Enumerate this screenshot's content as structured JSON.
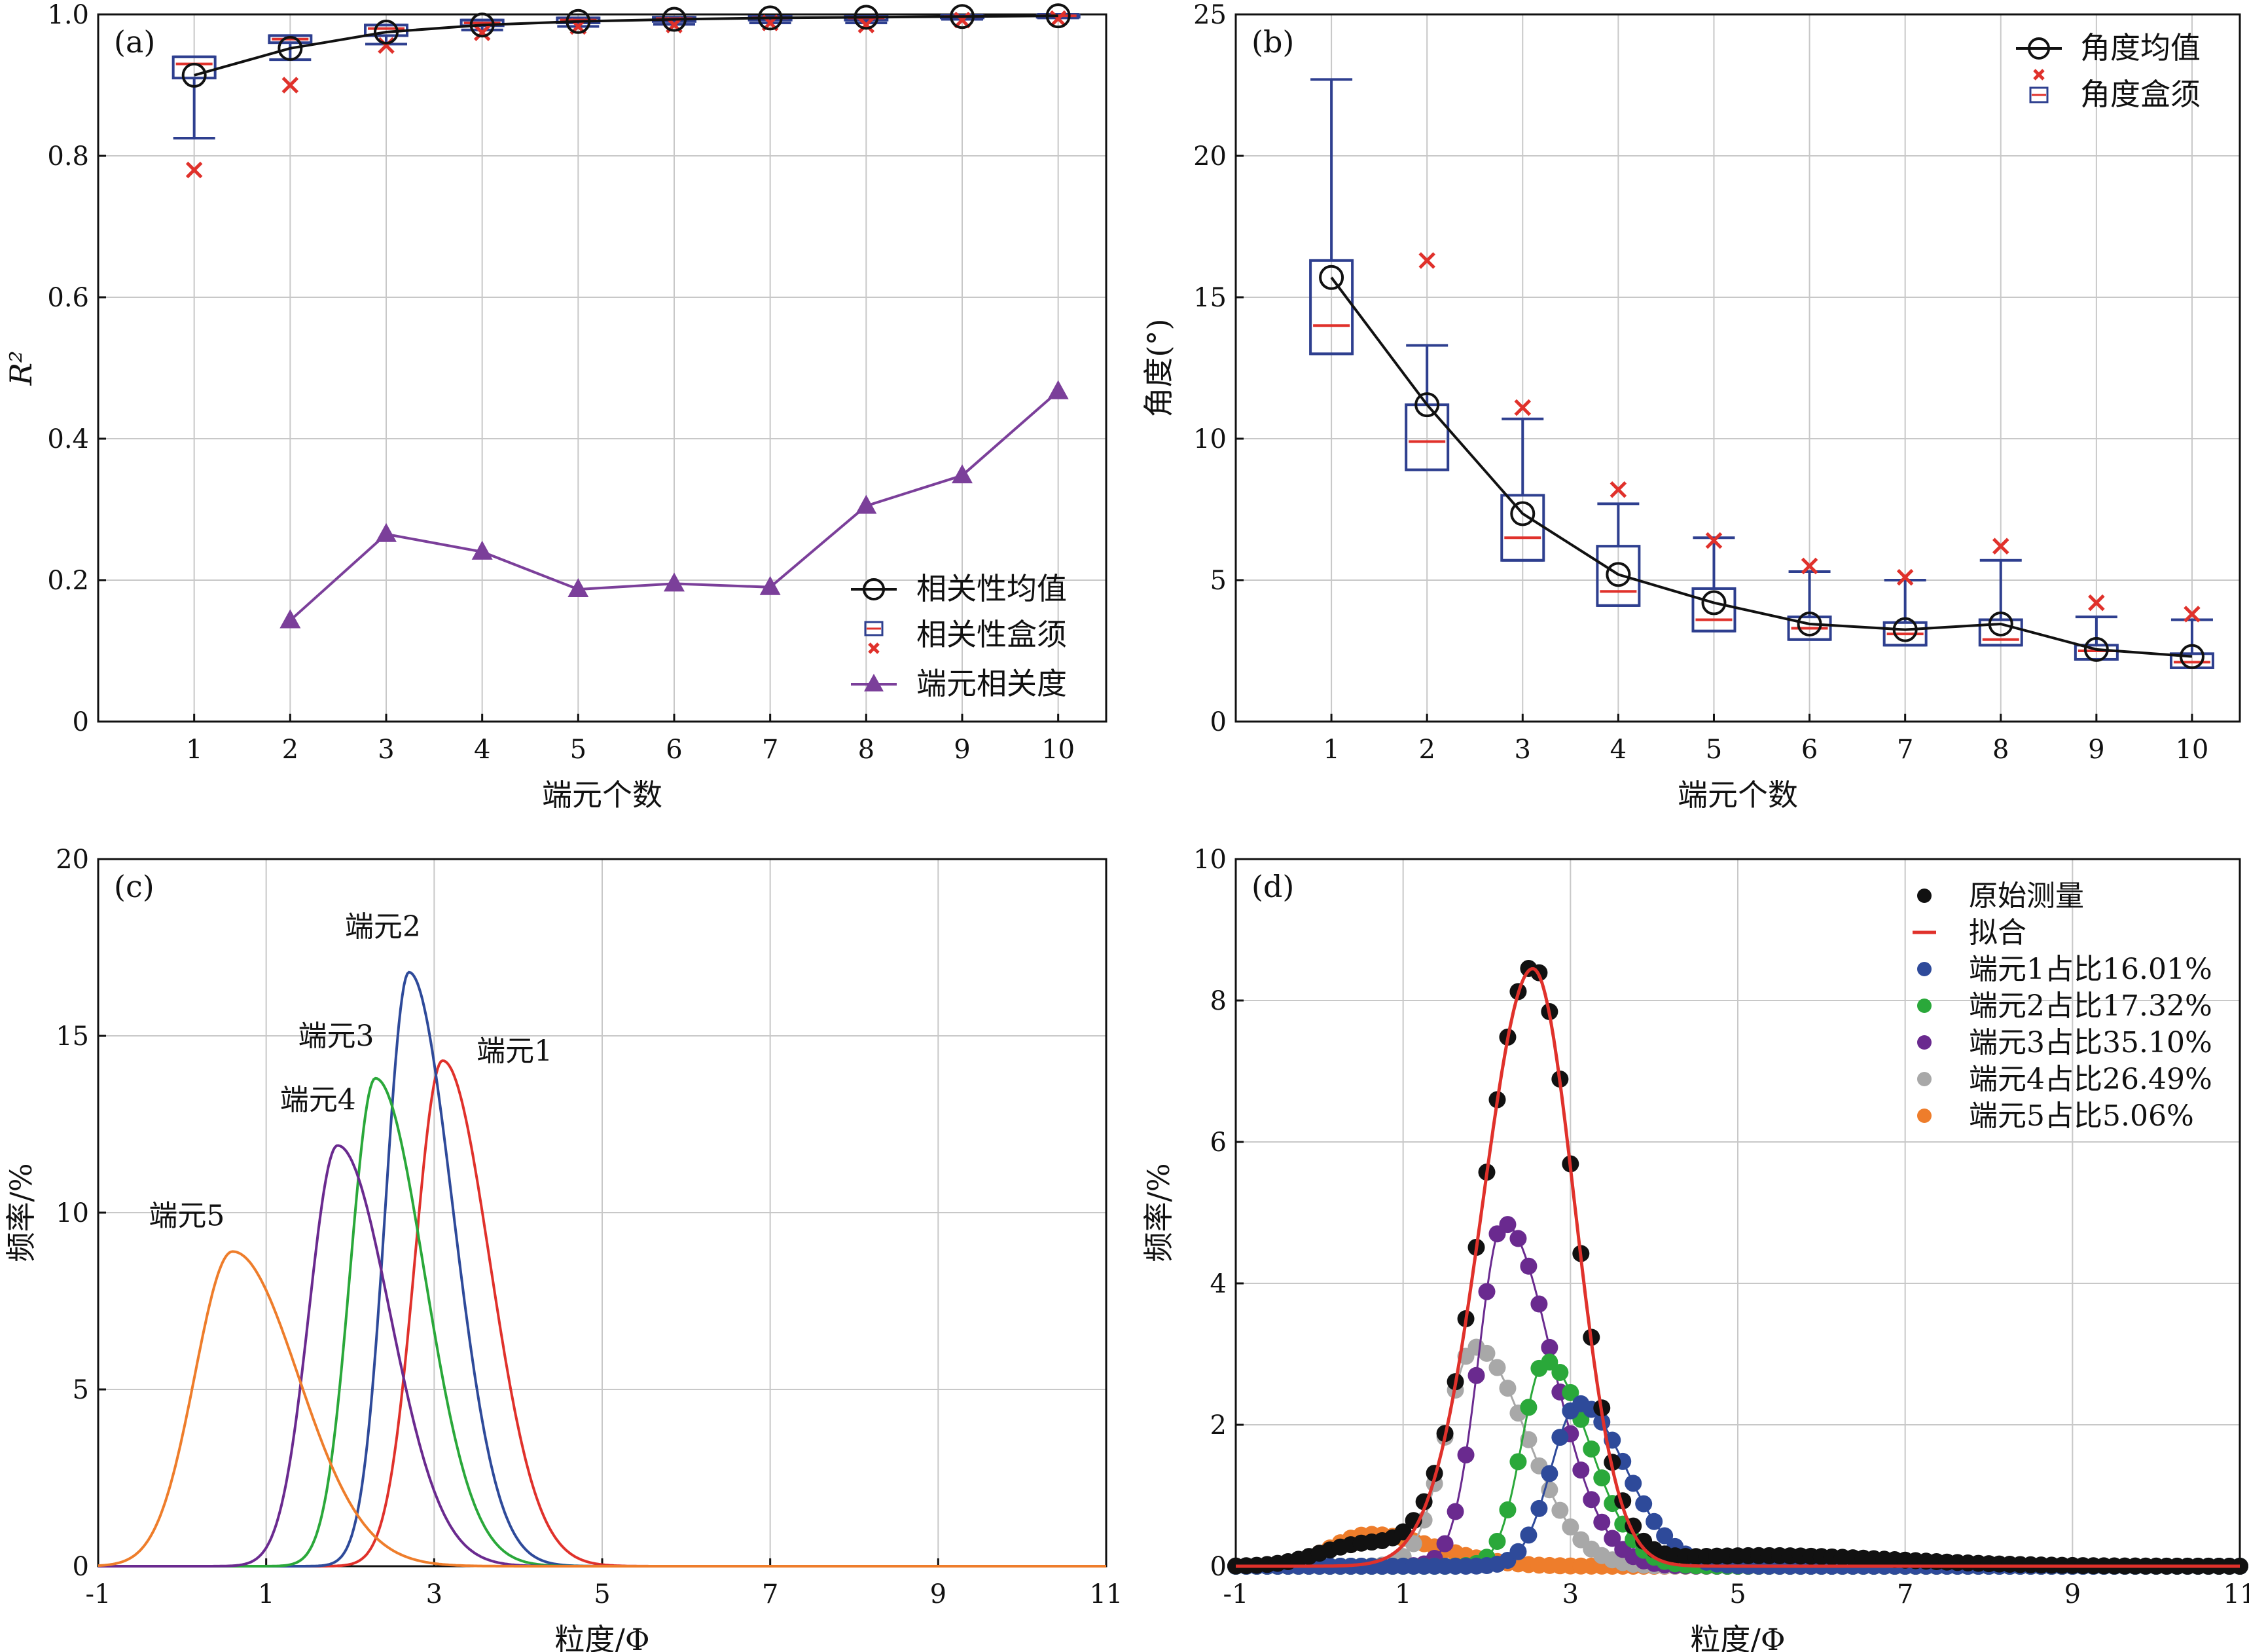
{
  "chart_data": [
    {
      "panel": "a",
      "type": "line",
      "panel_label": "(a)",
      "xlabel": "端元个数",
      "ylabel": "R²",
      "xlim": [
        0,
        10.5
      ],
      "ylim": [
        0,
        1.0
      ],
      "x_ticks": [
        1,
        2,
        3,
        4,
        5,
        6,
        7,
        8,
        9,
        10
      ],
      "y_ticks": [
        0,
        0.2,
        0.4,
        0.6,
        0.8,
        1.0
      ],
      "y_tick_labels": [
        "0",
        "0.2",
        "0.4",
        "0.6",
        "0.8",
        "1.0"
      ],
      "grid": true,
      "legend_position": "bottom-right",
      "legend": [
        "相关性均值",
        "相关性盒须",
        "端元相关度"
      ],
      "mean": {
        "x": [
          1,
          2,
          3,
          4,
          5,
          6,
          7,
          8,
          9,
          10
        ],
        "y": [
          0.914,
          0.952,
          0.975,
          0.985,
          0.99,
          0.993,
          0.995,
          0.996,
          0.997,
          0.998
        ]
      },
      "boxes": [
        {
          "x": 1,
          "q1": 0.91,
          "median": 0.93,
          "q3": 0.94,
          "whisker_low": 0.825,
          "whisker_high": 0.94,
          "outliers": [
            0.78
          ]
        },
        {
          "x": 2,
          "q1": 0.96,
          "median": 0.965,
          "q3": 0.97,
          "whisker_low": 0.936,
          "whisker_high": 0.97,
          "outliers": [
            0.9
          ]
        },
        {
          "x": 3,
          "q1": 0.97,
          "median": 0.98,
          "q3": 0.985,
          "whisker_low": 0.958,
          "whisker_high": 0.985,
          "outliers": [
            0.956
          ]
        },
        {
          "x": 4,
          "q1": 0.984,
          "median": 0.988,
          "q3": 0.992,
          "whisker_low": 0.978,
          "whisker_high": 0.992,
          "outliers": [
            0.974
          ]
        },
        {
          "x": 5,
          "q1": 0.988,
          "median": 0.992,
          "q3": 0.995,
          "whisker_low": 0.983,
          "whisker_high": 0.995,
          "outliers": [
            0.983
          ]
        },
        {
          "x": 6,
          "q1": 0.99,
          "median": 0.994,
          "q3": 0.996,
          "whisker_low": 0.986,
          "whisker_high": 0.996,
          "outliers": [
            0.985
          ]
        },
        {
          "x": 7,
          "q1": 0.992,
          "median": 0.995,
          "q3": 0.997,
          "whisker_low": 0.988,
          "whisker_high": 0.997,
          "outliers": [
            0.988
          ]
        },
        {
          "x": 8,
          "q1": 0.992,
          "median": 0.995,
          "q3": 0.997,
          "whisker_low": 0.988,
          "whisker_high": 0.997,
          "outliers": [
            0.985
          ]
        },
        {
          "x": 9,
          "q1": 0.995,
          "median": 0.997,
          "q3": 0.998,
          "whisker_low": 0.993,
          "whisker_high": 0.999,
          "outliers": [
            0.992
          ]
        },
        {
          "x": 10,
          "q1": 0.996,
          "median": 0.998,
          "q3": 0.999,
          "whisker_low": 0.995,
          "whisker_high": 1.0,
          "outliers": [
            0.994
          ]
        }
      ],
      "correlation": {
        "x": [
          2,
          3,
          4,
          5,
          6,
          7,
          8,
          9,
          10
        ],
        "y": [
          0.143,
          0.265,
          0.24,
          0.187,
          0.195,
          0.19,
          0.305,
          0.348,
          0.467
        ]
      }
    },
    {
      "panel": "b",
      "type": "line",
      "panel_label": "(b)",
      "xlabel": "端元个数",
      "ylabel": "角度(°)",
      "xlim": [
        0,
        10.5
      ],
      "ylim": [
        0,
        25
      ],
      "x_ticks": [
        1,
        2,
        3,
        4,
        5,
        6,
        7,
        8,
        9,
        10
      ],
      "y_ticks": [
        0,
        5,
        10,
        15,
        20,
        25
      ],
      "grid": true,
      "legend_position": "top-right",
      "legend": [
        "角度均值",
        "角度盒须"
      ],
      "mean": {
        "x": [
          1,
          2,
          3,
          4,
          5,
          6,
          7,
          8,
          9,
          10
        ],
        "y": [
          15.7,
          11.2,
          7.35,
          5.2,
          4.2,
          3.45,
          3.25,
          3.45,
          2.55,
          2.3
        ]
      },
      "boxes": [
        {
          "x": 1,
          "q1": 13.0,
          "median": 14.0,
          "q3": 16.3,
          "whisker_low": 13.0,
          "whisker_high": 22.7,
          "outliers": []
        },
        {
          "x": 2,
          "q1": 8.9,
          "median": 9.9,
          "q3": 11.2,
          "whisker_low": 8.9,
          "whisker_high": 13.3,
          "outliers": [
            16.3
          ]
        },
        {
          "x": 3,
          "q1": 5.7,
          "median": 6.5,
          "q3": 8.0,
          "whisker_low": 5.7,
          "whisker_high": 10.7,
          "outliers": [
            11.1
          ]
        },
        {
          "x": 4,
          "q1": 4.1,
          "median": 4.6,
          "q3": 6.2,
          "whisker_low": 4.1,
          "whisker_high": 7.7,
          "outliers": [
            8.2
          ]
        },
        {
          "x": 5,
          "q1": 3.2,
          "median": 3.6,
          "q3": 4.7,
          "whisker_low": 3.2,
          "whisker_high": 6.5,
          "outliers": [
            6.4
          ]
        },
        {
          "x": 6,
          "q1": 2.9,
          "median": 3.3,
          "q3": 3.7,
          "whisker_low": 2.9,
          "whisker_high": 5.3,
          "outliers": [
            5.5
          ]
        },
        {
          "x": 7,
          "q1": 2.7,
          "median": 3.1,
          "q3": 3.5,
          "whisker_low": 2.7,
          "whisker_high": 5.0,
          "outliers": [
            5.1
          ]
        },
        {
          "x": 8,
          "q1": 2.7,
          "median": 2.9,
          "q3": 3.6,
          "whisker_low": 2.7,
          "whisker_high": 5.7,
          "outliers": [
            6.2
          ]
        },
        {
          "x": 9,
          "q1": 2.2,
          "median": 2.5,
          "q3": 2.7,
          "whisker_low": 2.2,
          "whisker_high": 3.7,
          "outliers": [
            4.2
          ]
        },
        {
          "x": 10,
          "q1": 1.9,
          "median": 2.1,
          "q3": 2.4,
          "whisker_low": 1.9,
          "whisker_high": 3.6,
          "outliers": [
            3.8
          ]
        }
      ]
    },
    {
      "panel": "c",
      "type": "line",
      "panel_label": "(c)",
      "xlabel": "粒度/Φ",
      "ylabel": "频率/%",
      "xlim": [
        -1,
        11
      ],
      "ylim": [
        0,
        20
      ],
      "x_ticks": [
        -1,
        1,
        3,
        5,
        7,
        9,
        11
      ],
      "y_ticks": [
        0,
        5,
        10,
        15,
        20
      ],
      "grid": true,
      "series": [
        {
          "name": "端元1",
          "color": "#e0312b",
          "peak_x": 3.1,
          "peak_y": 14.3,
          "width_left": 0.33,
          "width_right": 0.56
        },
        {
          "name": "端元2",
          "color": "#2e4a9a",
          "peak_x": 2.7,
          "peak_y": 16.8,
          "width_left": 0.28,
          "width_right": 0.52
        },
        {
          "name": "端元3",
          "color": "#2aa83a",
          "peak_x": 2.3,
          "peak_y": 13.8,
          "width_left": 0.3,
          "width_right": 0.58
        },
        {
          "name": "端元4",
          "color": "#6a2a8f",
          "peak_x": 1.85,
          "peak_y": 11.9,
          "width_left": 0.34,
          "width_right": 0.62
        },
        {
          "name": "端元5",
          "color": "#ee7d2b",
          "peak_x": 0.6,
          "peak_y": 8.9,
          "width_left": 0.45,
          "width_right": 0.78
        }
      ]
    },
    {
      "panel": "d",
      "type": "scatter",
      "panel_label": "(d)",
      "xlabel": "粒度/Φ",
      "ylabel": "频率/%",
      "xlim": [
        -1,
        11
      ],
      "ylim": [
        0,
        10
      ],
      "x_ticks": [
        -1,
        1,
        3,
        5,
        7,
        9,
        11
      ],
      "y_ticks": [
        0,
        2,
        4,
        6,
        8,
        10
      ],
      "grid": true,
      "legend_position": "top-right",
      "series": [
        {
          "name": "原始测量",
          "color": "#111111",
          "kind": "points",
          "peak_x": 2.55,
          "peak_y": 8.45,
          "width_left": 0.6,
          "width_right": 0.5,
          "tail_x": 5.3,
          "tail_y": 0.15
        },
        {
          "name": "拟合",
          "color": "#e0312b",
          "kind": "line",
          "peak_x": 2.55,
          "peak_y": 8.45,
          "width_left": 0.6,
          "width_right": 0.5
        },
        {
          "name": "端元1占比16.01%",
          "color": "#2e4a9a",
          "kind": "points+line",
          "peak_x": 3.1,
          "peak_y": 2.3,
          "width_left": 0.33,
          "width_right": 0.56
        },
        {
          "name": "端元2占比17.32%",
          "color": "#2aa83a",
          "kind": "points+line",
          "peak_x": 2.7,
          "peak_y": 2.9,
          "width_left": 0.28,
          "width_right": 0.52
        },
        {
          "name": "端元3占比35.10%",
          "color": "#6a2a8f",
          "kind": "points+line",
          "peak_x": 2.2,
          "peak_y": 4.85,
          "width_left": 0.3,
          "width_right": 0.58
        },
        {
          "name": "端元4占比26.49%",
          "color": "#a8a8a8",
          "kind": "points+line",
          "peak_x": 1.85,
          "peak_y": 3.1,
          "width_left": 0.34,
          "width_right": 0.62
        },
        {
          "name": "端元5占比5.06%",
          "color": "#ee7d2b",
          "kind": "points+line",
          "peak_x": 0.6,
          "peak_y": 0.45,
          "width_left": 0.45,
          "width_right": 0.78
        }
      ]
    }
  ],
  "colors": {
    "axis": "#111111",
    "grid": "#c8c8c8",
    "box": "#2e3f8f",
    "median": "#e0312b",
    "outlier": "#e0312b",
    "mean_line": "#111111",
    "correlation": "#7b3f9a"
  }
}
